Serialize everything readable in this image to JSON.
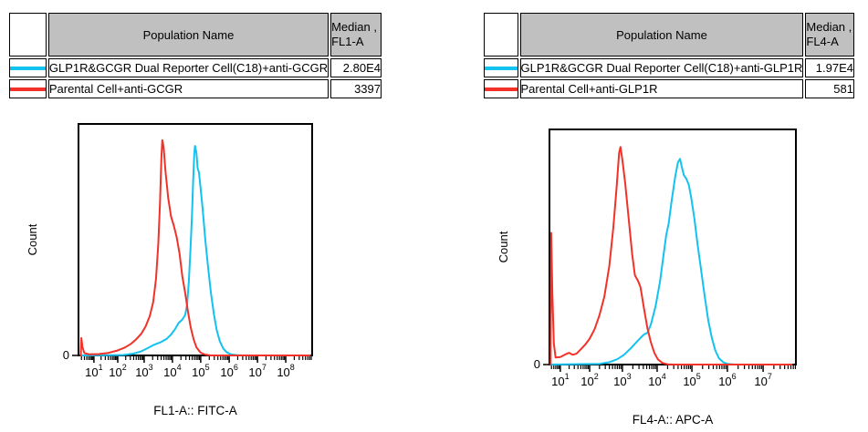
{
  "colors": {
    "header_bg": "#c0c0c0",
    "blue": "#12c2f0",
    "red": "#f23128"
  },
  "tables": [
    {
      "header": {
        "population": "Population Name",
        "median_line1": "Median ,",
        "median_line2": "FL1-A"
      },
      "rows": [
        {
          "name": "GLP1R&GCGR Dual Reporter Cell(C18)+anti-GCGR",
          "median": "2.80E4",
          "color": "#12c2f0"
        },
        {
          "name": "Parental Cell+anti-GCGR",
          "median": "3397",
          "color": "#f23128"
        }
      ]
    },
    {
      "header": {
        "population": "Population Name",
        "median_line1": "Median ,",
        "median_line2": "FL4-A"
      },
      "rows": [
        {
          "name": "GLP1R&GCGR Dual Reporter Cell(C18)+anti-GLP1R",
          "median": "1.97E4",
          "color": "#12c2f0"
        },
        {
          "name": "Parental Cell+anti-GLP1R",
          "median": "581",
          "color": "#f23128"
        }
      ]
    }
  ],
  "chart_data": [
    {
      "type": "line",
      "title": "",
      "xlabel": "FL1-A:: FITC-A",
      "ylabel": "Count",
      "y_zero_label": "0",
      "xscale": "log-biexponential",
      "tick_base": "10",
      "x_ticks": [
        {
          "exp": 1,
          "frac": 0.066
        },
        {
          "exp": 2,
          "frac": 0.168
        },
        {
          "exp": 3,
          "frac": 0.281
        },
        {
          "exp": 4,
          "frac": 0.402
        },
        {
          "exp": 5,
          "frac": 0.523
        },
        {
          "exp": 6,
          "frac": 0.645
        },
        {
          "exp": 7,
          "frac": 0.766
        },
        {
          "exp": 8,
          "frac": 0.887
        }
      ],
      "series": [
        {
          "name": "GLP1R&GCGR Dual Reporter Cell(C18)+anti-GCGR",
          "color": "#12c2f0",
          "median": "2.80E4",
          "points": [
            [
              0.45,
              0
            ],
            [
              2.2,
              0.002
            ],
            [
              2.6,
              0.008
            ],
            [
              2.9,
              0.018
            ],
            [
              3.1,
              0.03
            ],
            [
              3.35,
              0.046
            ],
            [
              3.6,
              0.058
            ],
            [
              3.8,
              0.072
            ],
            [
              3.95,
              0.09
            ],
            [
              4.1,
              0.115
            ],
            [
              4.22,
              0.14
            ],
            [
              4.35,
              0.155
            ],
            [
              4.45,
              0.175
            ],
            [
              4.52,
              0.22
            ],
            [
              4.58,
              0.32
            ],
            [
              4.64,
              0.46
            ],
            [
              4.69,
              0.6
            ],
            [
              4.73,
              0.74
            ],
            [
              4.77,
              0.87
            ],
            [
              4.8,
              0.905
            ],
            [
              4.85,
              0.875
            ],
            [
              4.89,
              0.81
            ],
            [
              4.94,
              0.79
            ],
            [
              4.99,
              0.73
            ],
            [
              5.07,
              0.63
            ],
            [
              5.16,
              0.5
            ],
            [
              5.26,
              0.38
            ],
            [
              5.36,
              0.27
            ],
            [
              5.46,
              0.18
            ],
            [
              5.56,
              0.11
            ],
            [
              5.67,
              0.062
            ],
            [
              5.79,
              0.03
            ],
            [
              5.92,
              0.013
            ],
            [
              6.08,
              0.004
            ],
            [
              6.3,
              0.001
            ],
            [
              6.5,
              0
            ],
            [
              8.85,
              0
            ]
          ]
        },
        {
          "name": "Parental Cell+anti-GCGR",
          "color": "#f23128",
          "median": "3397",
          "points": [
            [
              0.45,
              0
            ],
            [
              0.47,
              0.075
            ],
            [
              0.52,
              0.035
            ],
            [
              0.6,
              0.01
            ],
            [
              0.8,
              0.005
            ],
            [
              1.2,
              0.006
            ],
            [
              1.6,
              0.011
            ],
            [
              1.95,
              0.02
            ],
            [
              2.25,
              0.033
            ],
            [
              2.5,
              0.05
            ],
            [
              2.7,
              0.07
            ],
            [
              2.9,
              0.095
            ],
            [
              3.05,
              0.125
            ],
            [
              3.2,
              0.17
            ],
            [
              3.32,
              0.23
            ],
            [
              3.42,
              0.33
            ],
            [
              3.5,
              0.48
            ],
            [
              3.56,
              0.66
            ],
            [
              3.61,
              0.85
            ],
            [
              3.64,
              0.93
            ],
            [
              3.69,
              0.9
            ],
            [
              3.75,
              0.8
            ],
            [
              3.85,
              0.68
            ],
            [
              3.95,
              0.6
            ],
            [
              4.05,
              0.56
            ],
            [
              4.15,
              0.51
            ],
            [
              4.25,
              0.44
            ],
            [
              4.35,
              0.34
            ],
            [
              4.45,
              0.27
            ],
            [
              4.55,
              0.19
            ],
            [
              4.65,
              0.12
            ],
            [
              4.75,
              0.07
            ],
            [
              4.85,
              0.035
            ],
            [
              5.0,
              0.012
            ],
            [
              5.15,
              0.004
            ],
            [
              5.35,
              0
            ],
            [
              8.85,
              0
            ]
          ]
        }
      ]
    },
    {
      "type": "line",
      "title": "",
      "xlabel": "FL4-A:: APC-A",
      "ylabel": "Count",
      "y_zero_label": "0",
      "xscale": "log-biexponential",
      "tick_base": "10",
      "x_ticks": [
        {
          "exp": 1,
          "frac": 0.044
        },
        {
          "exp": 2,
          "frac": 0.163
        },
        {
          "exp": 3,
          "frac": 0.296
        },
        {
          "exp": 4,
          "frac": 0.437
        },
        {
          "exp": 5,
          "frac": 0.578
        },
        {
          "exp": 6,
          "frac": 0.722
        },
        {
          "exp": 7,
          "frac": 0.867
        }
      ],
      "series": [
        {
          "name": "GLP1R&GCGR Dual Reporter Cell(C18)+anti-GLP1R",
          "color": "#12c2f0",
          "median": "1.97E4",
          "points": [
            [
              0.67,
              0
            ],
            [
              2.3,
              0.003
            ],
            [
              2.6,
              0.01
            ],
            [
              2.85,
              0.023
            ],
            [
              3.05,
              0.042
            ],
            [
              3.25,
              0.07
            ],
            [
              3.45,
              0.103
            ],
            [
              3.62,
              0.128
            ],
            [
              3.72,
              0.135
            ],
            [
              3.82,
              0.17
            ],
            [
              3.95,
              0.245
            ],
            [
              4.08,
              0.35
            ],
            [
              4.18,
              0.46
            ],
            [
              4.26,
              0.55
            ],
            [
              4.33,
              0.6
            ],
            [
              4.42,
              0.7
            ],
            [
              4.52,
              0.8
            ],
            [
              4.6,
              0.86
            ],
            [
              4.66,
              0.875
            ],
            [
              4.71,
              0.84
            ],
            [
              4.77,
              0.805
            ],
            [
              4.84,
              0.79
            ],
            [
              4.91,
              0.765
            ],
            [
              4.98,
              0.71
            ],
            [
              5.07,
              0.62
            ],
            [
              5.16,
              0.51
            ],
            [
              5.26,
              0.4
            ],
            [
              5.36,
              0.29
            ],
            [
              5.46,
              0.19
            ],
            [
              5.56,
              0.115
            ],
            [
              5.66,
              0.06
            ],
            [
              5.76,
              0.027
            ],
            [
              5.88,
              0.01
            ],
            [
              6.0,
              0.003
            ],
            [
              6.2,
              0
            ],
            [
              7.8,
              0
            ]
          ]
        },
        {
          "name": "Parental Cell+anti-GLP1R",
          "color": "#f23128",
          "median": "581",
          "points": [
            [
              0.67,
              0
            ],
            [
              0.69,
              0.56
            ],
            [
              0.73,
              0.3
            ],
            [
              0.78,
              0.09
            ],
            [
              0.84,
              0.03
            ],
            [
              1.0,
              0.032
            ],
            [
              1.15,
              0.042
            ],
            [
              1.3,
              0.05
            ],
            [
              1.42,
              0.042
            ],
            [
              1.55,
              0.046
            ],
            [
              1.7,
              0.065
            ],
            [
              1.85,
              0.085
            ],
            [
              2.0,
              0.11
            ],
            [
              2.15,
              0.15
            ],
            [
              2.3,
              0.21
            ],
            [
              2.45,
              0.29
            ],
            [
              2.6,
              0.42
            ],
            [
              2.72,
              0.58
            ],
            [
              2.82,
              0.75
            ],
            [
              2.9,
              0.9
            ],
            [
              2.94,
              0.925
            ],
            [
              3.0,
              0.87
            ],
            [
              3.08,
              0.77
            ],
            [
              3.18,
              0.62
            ],
            [
              3.28,
              0.47
            ],
            [
              3.36,
              0.38
            ],
            [
              3.45,
              0.355
            ],
            [
              3.52,
              0.33
            ],
            [
              3.62,
              0.24
            ],
            [
              3.72,
              0.155
            ],
            [
              3.82,
              0.095
            ],
            [
              3.92,
              0.05
            ],
            [
              4.02,
              0.022
            ],
            [
              4.15,
              0.007
            ],
            [
              4.3,
              0.001
            ],
            [
              4.5,
              0
            ],
            [
              7.8,
              0
            ]
          ]
        }
      ]
    }
  ]
}
